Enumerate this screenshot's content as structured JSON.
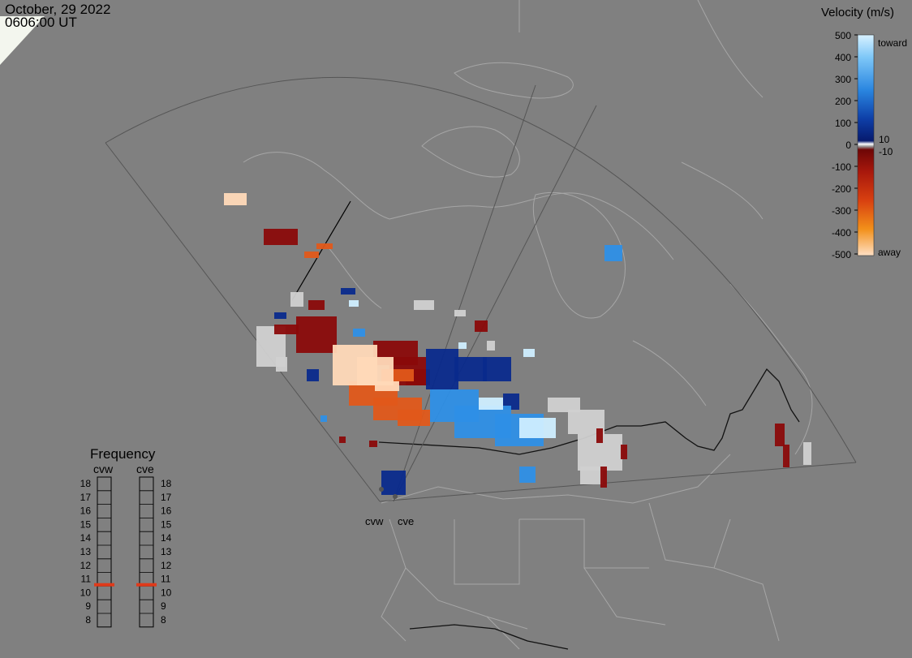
{
  "header": {
    "date": "October, 29 2022",
    "time": "0606:00 UT"
  },
  "radars": [
    {
      "code": "cvw"
    },
    {
      "code": "cve"
    }
  ],
  "velocity_scale": {
    "title": "Velocity (m/s)",
    "ticks": [
      "500",
      "400",
      "300",
      "200",
      "100",
      "0",
      "-100",
      "-200",
      "-300",
      "-400",
      "-500"
    ],
    "toward_label": "toward",
    "away_label": "away",
    "inner_pos": "10",
    "inner_neg": "-10",
    "colors": {
      "toward_light": "#cfeeff",
      "toward_mid": "#2e8fe6",
      "toward_dark": "#0a2a8c",
      "away_dark": "#8a0a0a",
      "away_mid": "#e0581a",
      "away_light": "#ffd9b8",
      "ground_scatter": "#d0d0d0"
    }
  },
  "frequency_panel": {
    "title": "Frequency",
    "columns": [
      "cvw",
      "cve"
    ],
    "levels": [
      "18",
      "17",
      "16",
      "15",
      "14",
      "13",
      "12",
      "11",
      "10",
      "9",
      "8"
    ],
    "selected": {
      "cvw": 10.6,
      "cve": 10.6
    },
    "marker_color": "#e03a1a"
  }
}
